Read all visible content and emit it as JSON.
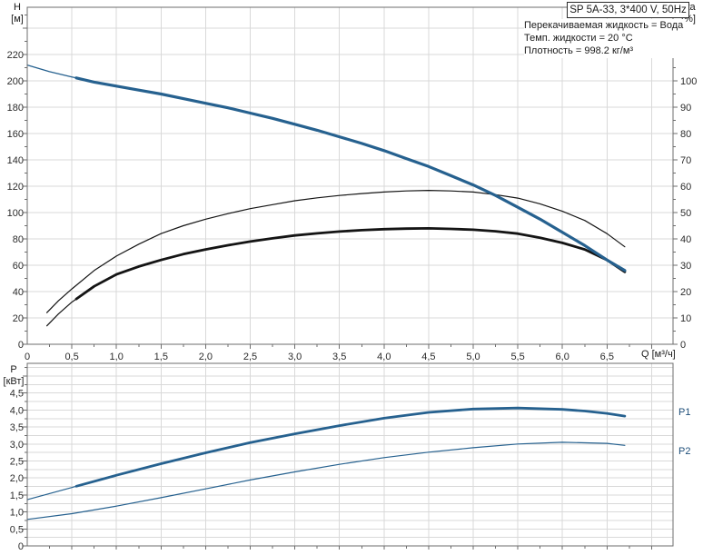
{
  "colors": {
    "curve_blue": "#26618f",
    "curve_black": "#141414",
    "grid": "#d9d9d9",
    "frame": "#6e6e6e",
    "tick_text": "#2b2b2b",
    "power_label_blue": "#1e4e79"
  },
  "labels": {
    "h_axis_top": "H",
    "h_axis_bottom": "[м]",
    "eta_axis_top": "eta",
    "eta_axis_bottom": "[%]",
    "q_axis": "Q [м³/ч]",
    "p_axis_top": "P",
    "p_axis_bottom": "[кВт]"
  },
  "chart_data": [
    {
      "id": "performance",
      "type": "line",
      "title": "SP 5A-33, 3*400 V, 50Hz",
      "info_lines": [
        "Перекачиваемая жидкость = Вода",
        "Темп. жидкости = 20 °C",
        "Плотность = 998.2 кг/м³"
      ],
      "x_axis": {
        "label": "Q [м³/ч]",
        "min": 0,
        "max": 7.24,
        "grid_step": 0.5,
        "tick_values": [
          0,
          0.5,
          1,
          1.5,
          2,
          2.5,
          3,
          3.5,
          4,
          4.5,
          5,
          5.5,
          6,
          6.5
        ],
        "tick_labels": [
          "0",
          "0,5",
          "1,0",
          "1,5",
          "2,0",
          "2,5",
          "3,0",
          "3,5",
          "4,0",
          "4,5",
          "5,0",
          "5,5",
          "6,0",
          "6,5"
        ]
      },
      "y_axis_left": {
        "label": "H [м]",
        "min": 0,
        "max": 256,
        "grid_step": 20,
        "tick_values": [
          0,
          20,
          40,
          60,
          80,
          100,
          120,
          140,
          160,
          180,
          200,
          220
        ],
        "tick_labels": [
          "0",
          "20",
          "40",
          "60",
          "80",
          "100",
          "120",
          "140",
          "160",
          "180",
          "200",
          "220"
        ]
      },
      "y_axis_right": {
        "label": "eta [%]",
        "min": 0,
        "max": 128,
        "grid_step": 10,
        "tick_values": [
          0,
          10,
          20,
          30,
          40,
          50,
          60,
          70,
          80,
          90,
          100
        ],
        "tick_labels": [
          "0",
          "10",
          "20",
          "30",
          "40",
          "50",
          "60",
          "70",
          "80",
          "90",
          "100"
        ]
      },
      "series": [
        {
          "name": "head-curve",
          "axis": "left",
          "color": "#26618f",
          "bold_from": 0.55,
          "points": [
            [
              0,
              212
            ],
            [
              0.25,
              207
            ],
            [
              0.5,
              203
            ],
            [
              0.75,
              199
            ],
            [
              1,
              196
            ],
            [
              1.25,
              193
            ],
            [
              1.5,
              190
            ],
            [
              1.75,
              186.5
            ],
            [
              2,
              183
            ],
            [
              2.25,
              179.5
            ],
            [
              2.5,
              175.5
            ],
            [
              2.75,
              171.5
            ],
            [
              3,
              167
            ],
            [
              3.25,
              162.5
            ],
            [
              3.5,
              157.5
            ],
            [
              3.75,
              152.5
            ],
            [
              4,
              147
            ],
            [
              4.25,
              141
            ],
            [
              4.5,
              135
            ],
            [
              4.75,
              128
            ],
            [
              5,
              121
            ],
            [
              5.25,
              113
            ],
            [
              5.5,
              104
            ],
            [
              5.75,
              95
            ],
            [
              6,
              85
            ],
            [
              6.25,
              75
            ],
            [
              6.5,
              64
            ],
            [
              6.7,
              56
            ]
          ]
        },
        {
          "name": "eta-pump-curve",
          "axis": "right",
          "color": "#141414",
          "points": [
            [
              0.22,
              12
            ],
            [
              0.35,
              16.5
            ],
            [
              0.5,
              21
            ],
            [
              0.75,
              28
            ],
            [
              1,
              33.5
            ],
            [
              1.25,
              38
            ],
            [
              1.5,
              42
            ],
            [
              1.75,
              45
            ],
            [
              2,
              47.5
            ],
            [
              2.25,
              49.6
            ],
            [
              2.5,
              51.5
            ],
            [
              2.75,
              53
            ],
            [
              3,
              54.5
            ],
            [
              3.25,
              55.6
            ],
            [
              3.5,
              56.5
            ],
            [
              3.75,
              57.2
            ],
            [
              4,
              57.8
            ],
            [
              4.25,
              58.2
            ],
            [
              4.5,
              58.4
            ],
            [
              4.75,
              58.2
            ],
            [
              5,
              57.8
            ],
            [
              5.25,
              56.8
            ],
            [
              5.5,
              55.5
            ],
            [
              5.75,
              53.3
            ],
            [
              6,
              50.5
            ],
            [
              6.25,
              47
            ],
            [
              6.5,
              42
            ],
            [
              6.7,
              37
            ]
          ]
        },
        {
          "name": "eta-total-curve",
          "axis": "right",
          "color": "#141414",
          "bold_from": 0.55,
          "points": [
            [
              0.22,
              7
            ],
            [
              0.35,
              11.5
            ],
            [
              0.5,
              16
            ],
            [
              0.75,
              22
            ],
            [
              1,
              26.5
            ],
            [
              1.25,
              29.5
            ],
            [
              1.5,
              32
            ],
            [
              1.75,
              34.2
            ],
            [
              2,
              36
            ],
            [
              2.25,
              37.6
            ],
            [
              2.5,
              39
            ],
            [
              2.75,
              40.2
            ],
            [
              3,
              41.3
            ],
            [
              3.25,
              42.1
            ],
            [
              3.5,
              42.8
            ],
            [
              3.75,
              43.3
            ],
            [
              4,
              43.7
            ],
            [
              4.25,
              43.9
            ],
            [
              4.5,
              44
            ],
            [
              4.75,
              43.8
            ],
            [
              5,
              43.5
            ],
            [
              5.25,
              42.9
            ],
            [
              5.5,
              42
            ],
            [
              5.75,
              40.4
            ],
            [
              6,
              38.5
            ],
            [
              6.25,
              36
            ],
            [
              6.5,
              32
            ],
            [
              6.7,
              27.5
            ]
          ]
        }
      ]
    },
    {
      "id": "power",
      "type": "line",
      "x_axis": {
        "min": 0,
        "max": 7.24,
        "grid_step": 0.5
      },
      "y_axis_left": {
        "label": "P [кВт]",
        "min": 0,
        "max": 5.37,
        "grid_step": 0.25,
        "tick_values": [
          0,
          0.5,
          1,
          1.5,
          2,
          2.5,
          3,
          3.5,
          4,
          4.5
        ],
        "tick_labels": [
          "0",
          "0,5",
          "1,0",
          "1,5",
          "2,0",
          "2,5",
          "3,0",
          "3,5",
          "4,0",
          "4,5"
        ]
      },
      "series": [
        {
          "name": "p1-curve",
          "label": "P1",
          "color": "#26618f",
          "bold_from": 0.55,
          "points": [
            [
              0,
              1.36
            ],
            [
              0.5,
              1.72
            ],
            [
              1,
              2.08
            ],
            [
              1.5,
              2.42
            ],
            [
              2,
              2.74
            ],
            [
              2.5,
              3.04
            ],
            [
              3,
              3.3
            ],
            [
              3.5,
              3.54
            ],
            [
              4,
              3.76
            ],
            [
              4.5,
              3.93
            ],
            [
              5,
              4.03
            ],
            [
              5.5,
              4.06
            ],
            [
              6,
              4.02
            ],
            [
              6.25,
              3.97
            ],
            [
              6.5,
              3.9
            ],
            [
              6.7,
              3.82
            ]
          ]
        },
        {
          "name": "p2-curve",
          "label": "P2",
          "color": "#26618f",
          "points": [
            [
              0,
              0.78
            ],
            [
              0.5,
              0.95
            ],
            [
              1,
              1.17
            ],
            [
              1.5,
              1.42
            ],
            [
              2,
              1.68
            ],
            [
              2.5,
              1.94
            ],
            [
              3,
              2.18
            ],
            [
              3.5,
              2.4
            ],
            [
              4,
              2.6
            ],
            [
              4.5,
              2.76
            ],
            [
              5,
              2.89
            ],
            [
              5.5,
              3.0
            ],
            [
              6,
              3.05
            ],
            [
              6.5,
              3.02
            ],
            [
              6.7,
              2.96
            ]
          ]
        }
      ]
    }
  ]
}
